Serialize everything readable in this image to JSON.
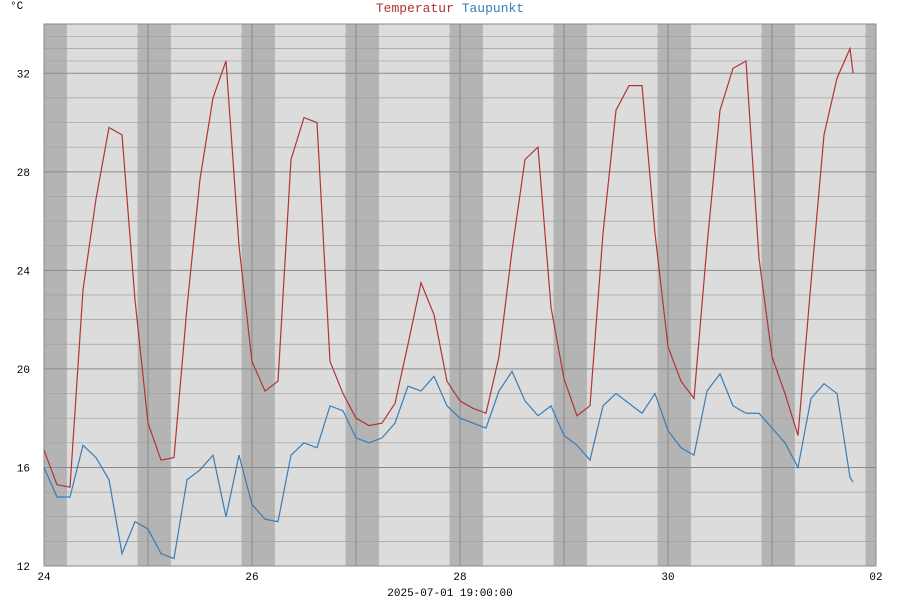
{
  "chart_data": {
    "type": "line",
    "y_unit": "°C",
    "xlabel": "2025-07-01 19:00:00",
    "x": [
      0,
      0.125,
      0.25,
      0.375,
      0.5,
      0.625,
      0.75,
      0.875,
      1,
      1.125,
      1.25,
      1.375,
      1.5,
      1.625,
      1.75,
      1.875,
      2,
      2.125,
      2.25,
      2.375,
      2.5,
      2.625,
      2.75,
      2.875,
      3,
      3.125,
      3.25,
      3.375,
      3.5,
      3.625,
      3.75,
      3.875,
      4,
      4.125,
      4.25,
      4.375,
      4.5,
      4.625,
      4.75,
      4.875,
      5,
      5.125,
      5.25,
      5.375,
      5.5,
      5.625,
      5.75,
      5.875,
      6,
      6.125,
      6.25,
      6.375,
      6.5,
      6.625,
      6.75,
      6.875,
      7,
      7.125,
      7.25,
      7.375,
      7.5,
      7.625,
      7.75,
      7.78
    ],
    "series": [
      {
        "name": "Temperatur",
        "color": "#b03535",
        "values": [
          16.7,
          15.3,
          15.2,
          23.2,
          26.9,
          29.8,
          29.5,
          22.8,
          17.8,
          16.3,
          16.4,
          22.5,
          27.7,
          31,
          32.5,
          25,
          20.3,
          19.1,
          19.5,
          28.5,
          30.2,
          30,
          20.3,
          19,
          18,
          17.7,
          17.8,
          18.6,
          21,
          23.5,
          22.2,
          19.5,
          18.7,
          18.4,
          18.2,
          20.5,
          24.8,
          28.5,
          29,
          22.5,
          19.6,
          18.1,
          18.5,
          25.5,
          30.5,
          31.5,
          31.5,
          25.5,
          20.9,
          19.5,
          18.8,
          25,
          30.5,
          32.2,
          32.5,
          24.5,
          20.5,
          19,
          17.3,
          23.5,
          29.5,
          31.8,
          33,
          32
        ]
      },
      {
        "name": "Taupunkt",
        "color": "#3a7db5",
        "values": [
          16,
          14.8,
          14.8,
          16.9,
          16.4,
          15.5,
          12.5,
          13.8,
          13.5,
          12.5,
          12.3,
          15.5,
          15.9,
          16.5,
          14,
          16.5,
          14.5,
          13.9,
          13.8,
          16.5,
          17,
          16.8,
          18.5,
          18.3,
          17.2,
          17,
          17.2,
          17.8,
          19.3,
          19.1,
          19.7,
          18.5,
          18,
          17.8,
          17.6,
          19.1,
          19.9,
          18.7,
          18.1,
          18.5,
          17.3,
          16.9,
          16.3,
          18.5,
          19,
          18.6,
          18.2,
          19,
          17.5,
          16.8,
          16.5,
          19.1,
          19.8,
          18.5,
          18.2,
          18.2,
          17.6,
          17,
          16,
          18.8,
          19.4,
          19,
          15.6,
          15.4
        ]
      }
    ],
    "xlim": [
      0,
      8
    ],
    "xticks": [
      {
        "value": 0,
        "label": "24"
      },
      {
        "value": 2,
        "label": "26"
      },
      {
        "value": 4,
        "label": "28"
      },
      {
        "value": 6,
        "label": "30"
      },
      {
        "value": 8,
        "label": "02"
      }
    ],
    "ylim": [
      12,
      34
    ],
    "yticks": [
      12,
      16,
      20,
      24,
      28,
      32
    ],
    "grid": true
  }
}
